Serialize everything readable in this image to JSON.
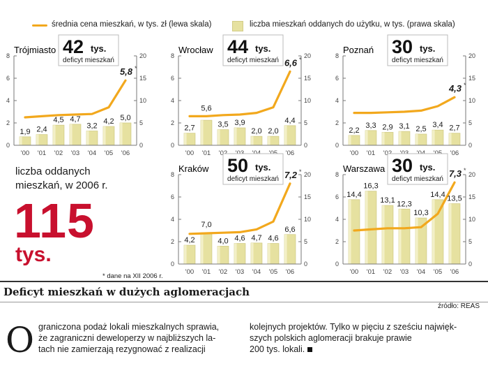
{
  "legend": {
    "line_label": "średnia cena mieszkań, w tys. zł (lewa skala)",
    "bar_label": "liczba mieszkań oddanych do użytku, w tys. (prawa skala)"
  },
  "deficit_label": "deficyt mieszkań",
  "deficit_unit": "tys.",
  "summary": {
    "label_line1": "liczba oddanych",
    "label_line2": "mieszkań, w 2006 r.",
    "number": "115",
    "unit": "tys.",
    "footnote": "* dane na XII 2006 r."
  },
  "title": "Deficyt mieszkań w dużych aglomeracjach",
  "source": "źródło: REAS",
  "article": {
    "dropcap": "O",
    "col1_line1": "graniczona podaż lokali mieszkalnych sprawia,",
    "col1_line2": "że zagraniczni deweloperzy w najbliższych la-",
    "col1_line3": "tach nie zamierzają rezygnować z realizacji",
    "col2_line1": "kolejnych projektów. Tylko w pięciu z sześciu najwięk-",
    "col2_line2": "szych polskich aglomeracji brakuje prawie",
    "col2_line3": "200 tys. lokali."
  },
  "colors": {
    "line": "#f2a81d",
    "bar": "#e6e1a0",
    "bar_edge": "#d2cc86",
    "accent": "#c8102e"
  },
  "chart_data": [
    {
      "type": "bar+line",
      "city": "Trójmiasto",
      "deficit": "42",
      "categories": [
        "'00",
        "'01",
        "'02",
        "'03",
        "'04",
        "'05",
        "'06"
      ],
      "bars": [
        1.9,
        2.4,
        4.5,
        4.7,
        3.2,
        4.2,
        5.0
      ],
      "bar_labels": [
        "1,9",
        "2,4",
        "4,5",
        "4,7",
        "3,2",
        "4,2",
        "5,0"
      ],
      "price": [
        2.5,
        2.6,
        2.7,
        2.75,
        2.8,
        3.4,
        5.8
      ],
      "price_label": "5,8",
      "left_ticks": [
        0,
        2,
        4,
        6,
        8
      ],
      "right_ticks": [
        0,
        5,
        10,
        15,
        20
      ]
    },
    {
      "type": "bar+line",
      "city": "Wrocław",
      "deficit": "44",
      "categories": [
        "'00",
        "'01",
        "'02",
        "'03",
        "'04",
        "'05",
        "'06"
      ],
      "bars": [
        2.7,
        5.6,
        3.5,
        3.9,
        2.0,
        2.0,
        4.4
      ],
      "bar_labels": [
        "2,7",
        "5,6",
        "3,5",
        "3,9",
        "2,0",
        "2,0",
        "4,4"
      ],
      "price": [
        2.6,
        2.6,
        2.7,
        2.75,
        2.9,
        3.4,
        6.6
      ],
      "price_label": "6,6",
      "left_ticks": [
        0,
        2,
        4,
        6,
        8
      ],
      "right_ticks": [
        0,
        5,
        10,
        15,
        20
      ]
    },
    {
      "type": "bar+line",
      "city": "Poznań",
      "deficit": "30",
      "categories": [
        "'00",
        "'01",
        "'02",
        "'03",
        "'04",
        "'05",
        "'06"
      ],
      "bars": [
        2.2,
        3.3,
        2.9,
        3.1,
        2.5,
        3.4,
        2.7
      ],
      "bar_labels": [
        "2,2",
        "3,3",
        "2,9",
        "3,1",
        "2,5",
        "3,4",
        "2,7"
      ],
      "price": [
        2.9,
        2.9,
        2.95,
        3.0,
        3.1,
        3.5,
        4.3
      ],
      "price_label": "4,3",
      "left_ticks": [
        0,
        2,
        4,
        6,
        8
      ],
      "right_ticks": [
        0,
        5,
        10,
        15,
        20
      ]
    },
    {
      "type": "bar+line",
      "city": "Kraków",
      "deficit": "50",
      "categories": [
        "'00",
        "'01",
        "'02",
        "'03",
        "'04",
        "'05",
        "'06"
      ],
      "bars": [
        4.2,
        7.0,
        4.0,
        4.6,
        4.7,
        4.6,
        6.6
      ],
      "bar_labels": [
        "4,2",
        "7,0",
        "4,0",
        "4,6",
        "4,7",
        "4,6",
        "6,6"
      ],
      "price": [
        2.7,
        2.75,
        2.8,
        2.85,
        3.1,
        3.8,
        7.2
      ],
      "price_label": "7,2",
      "left_ticks": [
        0,
        2,
        4,
        6,
        8
      ],
      "right_ticks": [
        0,
        5,
        10,
        15,
        20
      ]
    },
    {
      "type": "bar+line",
      "city": "Warszawa",
      "deficit": "30",
      "categories": [
        "'00",
        "'01",
        "'02",
        "'03",
        "'04",
        "'05",
        "'06"
      ],
      "bars": [
        14.4,
        16.3,
        13.1,
        12.3,
        10.3,
        14.4,
        13.5
      ],
      "bar_labels": [
        "14,4",
        "16,3",
        "13,1",
        "12,3",
        "10,3",
        "14,4",
        "13,5"
      ],
      "price": [
        3.0,
        3.1,
        3.2,
        3.2,
        3.3,
        4.5,
        7.3
      ],
      "price_label": "7,3",
      "left_ticks": [
        0,
        2,
        4,
        6,
        8
      ],
      "right_ticks": [
        0,
        5,
        10,
        15,
        20
      ]
    }
  ]
}
